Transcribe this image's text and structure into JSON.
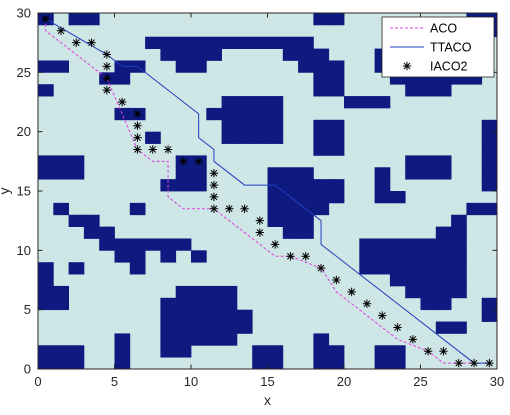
{
  "chart_data": {
    "type": "line",
    "title": "",
    "xlabel": "x",
    "ylabel": "y",
    "xlim": [
      0,
      30
    ],
    "ylim": [
      0,
      30
    ],
    "xticks": [
      "0",
      "5",
      "10",
      "15",
      "20",
      "25",
      "30"
    ],
    "yticks": [
      "0",
      "5",
      "10",
      "15",
      "20",
      "25",
      "30"
    ],
    "grid": false,
    "legend_position": "top-right",
    "colors": {
      "free_space": "#cfe6e6",
      "obstacle": "#0e1a80",
      "axis": "#262626"
    },
    "obstacles": [
      [
        0,
        29
      ],
      [
        2,
        29
      ],
      [
        3,
        29
      ],
      [
        18,
        29
      ],
      [
        19,
        29
      ],
      [
        28,
        29
      ],
      [
        29,
        29
      ],
      [
        26,
        28
      ],
      [
        28,
        28
      ],
      [
        29,
        28
      ],
      [
        7,
        27
      ],
      [
        8,
        27
      ],
      [
        9,
        27
      ],
      [
        10,
        27
      ],
      [
        11,
        27
      ],
      [
        12,
        27
      ],
      [
        13,
        27
      ],
      [
        14,
        27
      ],
      [
        15,
        27
      ],
      [
        16,
        27
      ],
      [
        17,
        27
      ],
      [
        8,
        26
      ],
      [
        9,
        26
      ],
      [
        10,
        26
      ],
      [
        11,
        26
      ],
      [
        16,
        26
      ],
      [
        17,
        26
      ],
      [
        18,
        26
      ],
      [
        22,
        26
      ],
      [
        23,
        26
      ],
      [
        24,
        26
      ],
      [
        25,
        26
      ],
      [
        26,
        26
      ],
      [
        27,
        26
      ],
      [
        28,
        26
      ],
      [
        0,
        25
      ],
      [
        1,
        25
      ],
      [
        5,
        25
      ],
      [
        6,
        25
      ],
      [
        9,
        25
      ],
      [
        10,
        25
      ],
      [
        17,
        25
      ],
      [
        18,
        25
      ],
      [
        19,
        25
      ],
      [
        22,
        25
      ],
      [
        23,
        25
      ],
      [
        24,
        25
      ],
      [
        25,
        25
      ],
      [
        26,
        25
      ],
      [
        27,
        25
      ],
      [
        28,
        25
      ],
      [
        4,
        24
      ],
      [
        5,
        24
      ],
      [
        18,
        24
      ],
      [
        19,
        24
      ],
      [
        23,
        24
      ],
      [
        24,
        24
      ],
      [
        25,
        24
      ],
      [
        26,
        24
      ],
      [
        27,
        24
      ],
      [
        28,
        24
      ],
      [
        0,
        23
      ],
      [
        18,
        23
      ],
      [
        19,
        23
      ],
      [
        24,
        23
      ],
      [
        25,
        23
      ],
      [
        26,
        23
      ],
      [
        12,
        22
      ],
      [
        13,
        22
      ],
      [
        14,
        22
      ],
      [
        15,
        22
      ],
      [
        20,
        22
      ],
      [
        21,
        22
      ],
      [
        22,
        22
      ],
      [
        5,
        21
      ],
      [
        6,
        21
      ],
      [
        11,
        21
      ],
      [
        12,
        21
      ],
      [
        13,
        21
      ],
      [
        14,
        21
      ],
      [
        15,
        21
      ],
      [
        12,
        20
      ],
      [
        13,
        20
      ],
      [
        14,
        20
      ],
      [
        15,
        20
      ],
      [
        18,
        20
      ],
      [
        19,
        20
      ],
      [
        29,
        20
      ],
      [
        7,
        19
      ],
      [
        12,
        19
      ],
      [
        13,
        19
      ],
      [
        14,
        19
      ],
      [
        15,
        19
      ],
      [
        18,
        19
      ],
      [
        19,
        19
      ],
      [
        29,
        19
      ],
      [
        18,
        18
      ],
      [
        19,
        18
      ],
      [
        29,
        18
      ],
      [
        0,
        17
      ],
      [
        1,
        17
      ],
      [
        2,
        17
      ],
      [
        9,
        17
      ],
      [
        10,
        17
      ],
      [
        24,
        17
      ],
      [
        25,
        17
      ],
      [
        26,
        17
      ],
      [
        29,
        17
      ],
      [
        0,
        16
      ],
      [
        1,
        16
      ],
      [
        2,
        16
      ],
      [
        9,
        16
      ],
      [
        10,
        16
      ],
      [
        15,
        16
      ],
      [
        16,
        16
      ],
      [
        17,
        16
      ],
      [
        22,
        16
      ],
      [
        24,
        16
      ],
      [
        25,
        16
      ],
      [
        26,
        16
      ],
      [
        29,
        16
      ],
      [
        8,
        15
      ],
      [
        9,
        15
      ],
      [
        10,
        15
      ],
      [
        15,
        15
      ],
      [
        16,
        15
      ],
      [
        17,
        15
      ],
      [
        18,
        15
      ],
      [
        19,
        15
      ],
      [
        22,
        15
      ],
      [
        29,
        15
      ],
      [
        15,
        14
      ],
      [
        16,
        14
      ],
      [
        17,
        14
      ],
      [
        18,
        14
      ],
      [
        19,
        14
      ],
      [
        22,
        14
      ],
      [
        23,
        14
      ],
      [
        1,
        13
      ],
      [
        6,
        13
      ],
      [
        15,
        13
      ],
      [
        16,
        13
      ],
      [
        17,
        13
      ],
      [
        18,
        13
      ],
      [
        28,
        13
      ],
      [
        29,
        13
      ],
      [
        2,
        12
      ],
      [
        3,
        12
      ],
      [
        15,
        12
      ],
      [
        16,
        12
      ],
      [
        17,
        12
      ],
      [
        27,
        12
      ],
      [
        3,
        11
      ],
      [
        4,
        11
      ],
      [
        16,
        11
      ],
      [
        17,
        11
      ],
      [
        26,
        11
      ],
      [
        27,
        11
      ],
      [
        4,
        10
      ],
      [
        5,
        10
      ],
      [
        6,
        10
      ],
      [
        7,
        10
      ],
      [
        8,
        10
      ],
      [
        9,
        10
      ],
      [
        21,
        10
      ],
      [
        22,
        10
      ],
      [
        23,
        10
      ],
      [
        24,
        10
      ],
      [
        25,
        10
      ],
      [
        26,
        10
      ],
      [
        27,
        10
      ],
      [
        5,
        9
      ],
      [
        6,
        9
      ],
      [
        8,
        9
      ],
      [
        10,
        9
      ],
      [
        21,
        9
      ],
      [
        22,
        9
      ],
      [
        23,
        9
      ],
      [
        24,
        9
      ],
      [
        25,
        9
      ],
      [
        26,
        9
      ],
      [
        27,
        9
      ],
      [
        0,
        8
      ],
      [
        2,
        8
      ],
      [
        6,
        8
      ],
      [
        21,
        8
      ],
      [
        22,
        8
      ],
      [
        23,
        8
      ],
      [
        24,
        8
      ],
      [
        25,
        8
      ],
      [
        26,
        8
      ],
      [
        27,
        8
      ],
      [
        0,
        7
      ],
      [
        23,
        7
      ],
      [
        24,
        7
      ],
      [
        25,
        7
      ],
      [
        26,
        7
      ],
      [
        27,
        7
      ],
      [
        0,
        6
      ],
      [
        1,
        6
      ],
      [
        9,
        6
      ],
      [
        10,
        6
      ],
      [
        11,
        6
      ],
      [
        12,
        6
      ],
      [
        24,
        6
      ],
      [
        25,
        6
      ],
      [
        26,
        6
      ],
      [
        27,
        6
      ],
      [
        0,
        5
      ],
      [
        1,
        5
      ],
      [
        8,
        5
      ],
      [
        9,
        5
      ],
      [
        10,
        5
      ],
      [
        11,
        5
      ],
      [
        12,
        5
      ],
      [
        25,
        5
      ],
      [
        26,
        5
      ],
      [
        29,
        5
      ],
      [
        8,
        4
      ],
      [
        9,
        4
      ],
      [
        10,
        4
      ],
      [
        11,
        4
      ],
      [
        12,
        4
      ],
      [
        13,
        4
      ],
      [
        29,
        4
      ],
      [
        8,
        3
      ],
      [
        9,
        3
      ],
      [
        10,
        3
      ],
      [
        11,
        3
      ],
      [
        12,
        3
      ],
      [
        13,
        3
      ],
      [
        26,
        3
      ],
      [
        27,
        3
      ],
      [
        5,
        2
      ],
      [
        8,
        2
      ],
      [
        9,
        2
      ],
      [
        10,
        2
      ],
      [
        11,
        2
      ],
      [
        12,
        2
      ],
      [
        18,
        2
      ],
      [
        0,
        1
      ],
      [
        1,
        1
      ],
      [
        2,
        1
      ],
      [
        5,
        1
      ],
      [
        8,
        1
      ],
      [
        9,
        1
      ],
      [
        14,
        1
      ],
      [
        15,
        1
      ],
      [
        18,
        1
      ],
      [
        19,
        1
      ],
      [
        22,
        1
      ],
      [
        23,
        1
      ],
      [
        0,
        0
      ],
      [
        1,
        0
      ],
      [
        2,
        0
      ],
      [
        5,
        0
      ],
      [
        14,
        0
      ],
      [
        15,
        0
      ],
      [
        18,
        0
      ],
      [
        19,
        0
      ],
      [
        22,
        0
      ],
      [
        23,
        0
      ]
    ],
    "series": [
      {
        "name": "ACO",
        "color": "#e040e0",
        "style": "dashed",
        "x": [
          0.5,
          0.5,
          4.5,
          6.5,
          7.5,
          8.5,
          8.5,
          9.5,
          11.5,
          12.5,
          14.5,
          15.5,
          16.5,
          18.5,
          19.5,
          21.5,
          22.5,
          23.5,
          25.5,
          26.5,
          27.5,
          29.5
        ],
        "y": [
          29.5,
          28.5,
          24.5,
          18.5,
          17.5,
          17.5,
          14.5,
          13.5,
          13.5,
          12.5,
          10.5,
          9.5,
          9.5,
          8.5,
          6.5,
          4.5,
          3.5,
          2.5,
          1.5,
          0.5,
          0.5,
          0.5
        ]
      },
      {
        "name": "TTACO",
        "color": "#1f3fbf",
        "style": "solid",
        "x": [
          0.5,
          4.5,
          5.5,
          6.5,
          7.5,
          9.5,
          10.5,
          10.5,
          11.5,
          11.5,
          12.5,
          12.5,
          13.5,
          13.5,
          14.5,
          14.5,
          15.5,
          18.5,
          18.5,
          19.5,
          19.5,
          20.5,
          21.5,
          21.5,
          28.5,
          29.5
        ],
        "y": [
          29.5,
          26.5,
          25.5,
          25.5,
          24.5,
          22.5,
          21.5,
          19.5,
          18.5,
          17.5,
          16.5,
          16.5,
          15.5,
          15.5,
          15.5,
          15.5,
          15.5,
          12.5,
          10.5,
          9.5,
          9.5,
          8.5,
          7.5,
          7.5,
          0.5,
          0.5
        ]
      },
      {
        "name": "IACO2",
        "color": "#000000",
        "style": "asterisk",
        "x": [
          0.5,
          1.5,
          2.5,
          3.5,
          4.5,
          4.5,
          4.5,
          4.5,
          5.5,
          6.5,
          6.5,
          6.5,
          6.5,
          7.5,
          8.5,
          9.5,
          10.5,
          11.5,
          11.5,
          11.5,
          11.5,
          12.5,
          13.5,
          14.5,
          14.5,
          15.5,
          16.5,
          17.5,
          18.5,
          19.5,
          20.5,
          21.5,
          22.5,
          23.5,
          24.5,
          25.5,
          26.5,
          27.5,
          28.5,
          29.5
        ],
        "y": [
          29.5,
          28.5,
          27.5,
          27.5,
          26.5,
          25.5,
          24.5,
          23.5,
          22.5,
          21.5,
          20.5,
          19.5,
          18.5,
          18.5,
          18.5,
          17.5,
          17.5,
          16.5,
          15.5,
          14.5,
          13.5,
          13.5,
          13.5,
          12.5,
          11.5,
          10.5,
          9.5,
          9.5,
          8.5,
          7.5,
          6.5,
          5.5,
          4.5,
          3.5,
          2.5,
          1.5,
          1.5,
          0.5,
          0.5,
          0.5
        ]
      }
    ]
  }
}
